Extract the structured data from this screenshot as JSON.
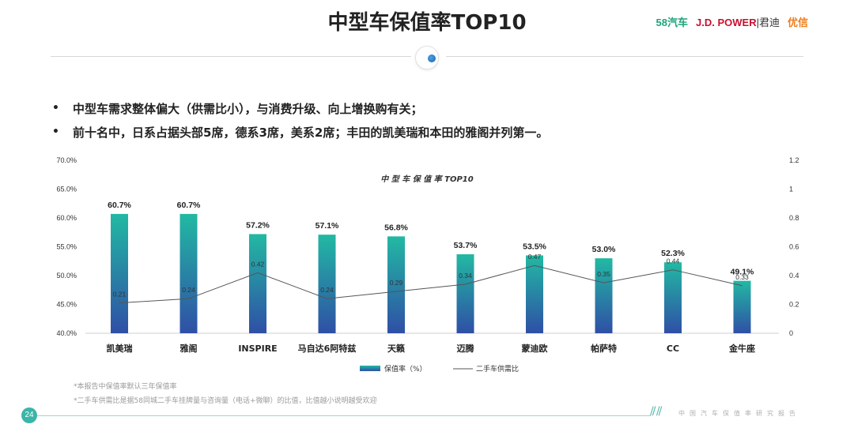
{
  "page": {
    "title": "中型车保值率TOP10",
    "logos": {
      "l58": "58汽车",
      "jd": "J.D. POWER",
      "jun": "|君迪",
      "yx": "优信"
    },
    "bullets": [
      "中型车需求整体偏大（供需比小），与消费升级、向上增换购有关；",
      "前十名中，日系占据头部5席，德系3席，美系2席；丰田的凯美瑞和本田的雅阁并列第一。"
    ],
    "bullet_marker": "•",
    "footnotes": [
      "*本报告中保值率默认三年保值率",
      "*二手车供需比是据58同城二手车挂牌量与咨询量（电话+微聊）的比值，比值越小说明越受欢迎"
    ],
    "page_number": "24",
    "tagline": "中国汽车保值率研究报告",
    "colors": {
      "bar_top": "#22b9a3",
      "bar_bottom": "#2f4fa6",
      "line": "#555555",
      "accent": "#3bb5a8"
    }
  },
  "chart_data": {
    "type": "bar",
    "title": "中 型 车 保 值 率 TOP10",
    "categories": [
      "凯美瑞",
      "雅阁",
      "INSPIRE",
      "马自达6阿特兹",
      "天籁",
      "迈腾",
      "蒙迪欧",
      "帕萨特",
      "CC",
      "金牛座"
    ],
    "series": [
      {
        "name": "保值率（%）",
        "type": "bar",
        "axis": "left",
        "values": [
          60.7,
          60.7,
          57.2,
          57.1,
          56.8,
          53.7,
          53.5,
          53.0,
          52.3,
          49.1
        ],
        "labels": [
          "60.7%",
          "60.7%",
          "57.2%",
          "57.1%",
          "56.8%",
          "53.7%",
          "53.5%",
          "53.0%",
          "52.3%",
          "49.1%"
        ]
      },
      {
        "name": "二手车供需比",
        "type": "line",
        "axis": "right",
        "values": [
          0.21,
          0.24,
          0.42,
          0.24,
          0.29,
          0.34,
          0.47,
          0.35,
          0.44,
          0.33
        ],
        "labels": [
          "0.21",
          "0.24",
          "0.42",
          "0.24",
          "0.29",
          "0.34",
          "0.47",
          "0.35",
          "0.44",
          "0.33"
        ]
      }
    ],
    "left_axis": {
      "ylim": [
        40,
        70
      ],
      "ticks": [
        "40.0%",
        "45.0%",
        "50.0%",
        "55.0%",
        "60.0%",
        "65.0%",
        "70.0%"
      ]
    },
    "right_axis": {
      "ylim": [
        0,
        1.2
      ],
      "ticks": [
        "0",
        "0.2",
        "0.4",
        "0.6",
        "0.8",
        "1",
        "1.2"
      ]
    },
    "grid": false,
    "legend": "bottom"
  }
}
